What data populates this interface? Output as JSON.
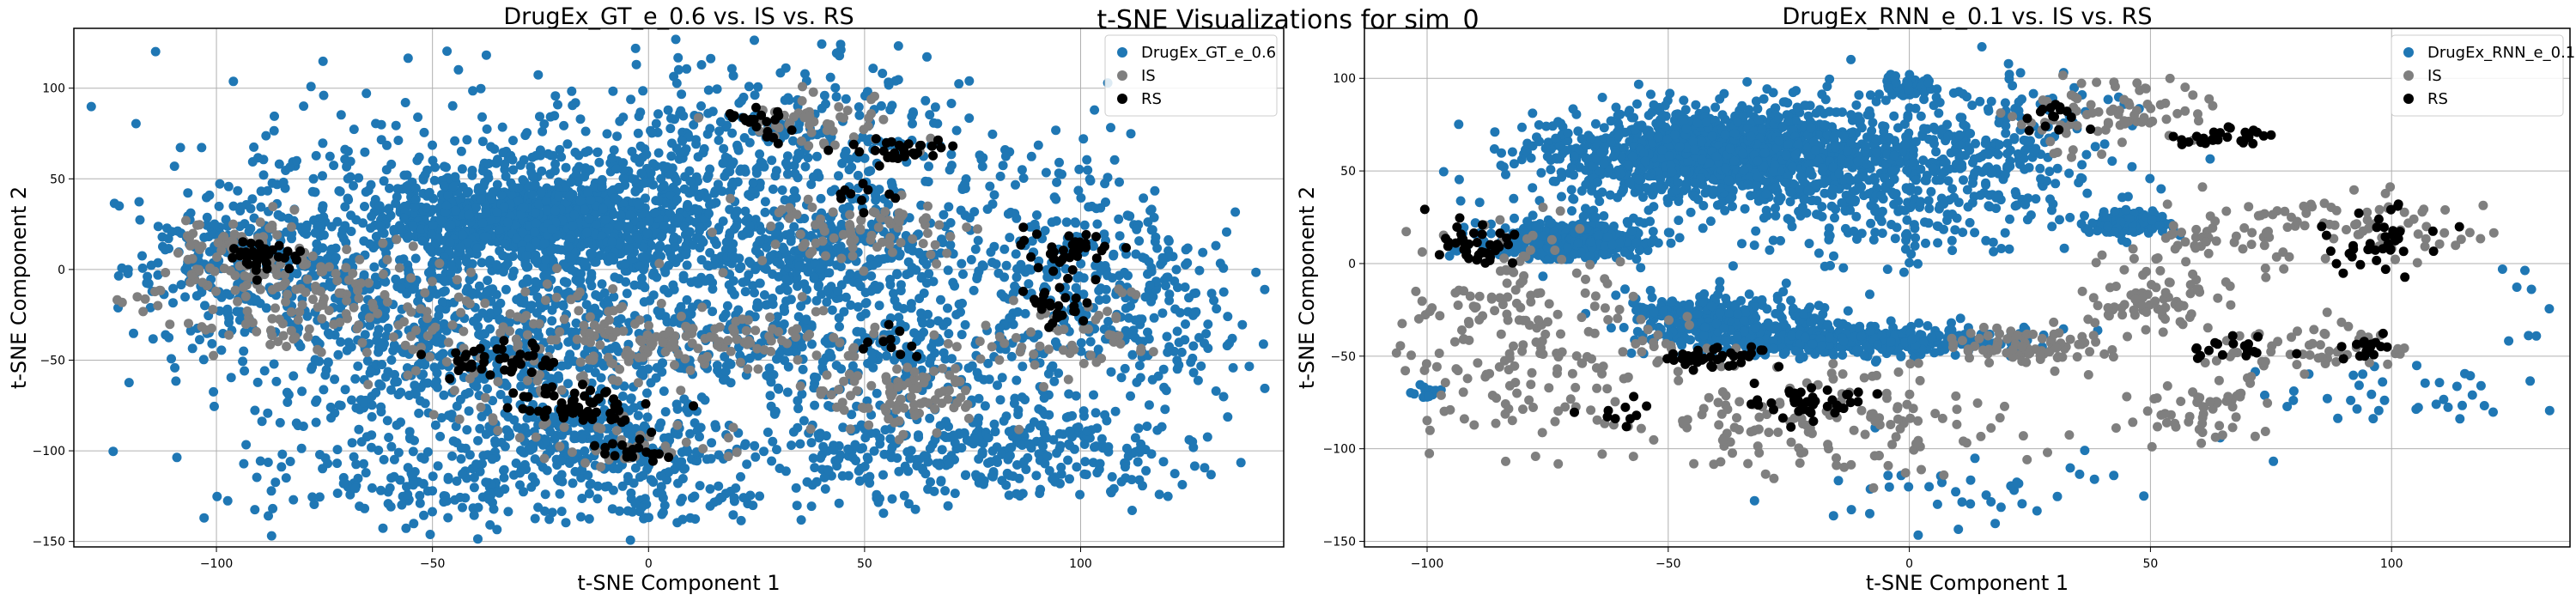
{
  "figure": {
    "suptitle": "t-SNE Visualizations for sim_0"
  },
  "chart_data": [
    {
      "type": "scatter",
      "title": "DrugEx_GT_e_0.6 vs. IS vs. RS",
      "xlabel": "t-SNE Component 1",
      "ylabel": "t-SNE Component 2",
      "xlim": [
        -133,
        147
      ],
      "ylim": [
        -153,
        133
      ],
      "xticks": [
        -100,
        -50,
        0,
        50,
        100
      ],
      "yticks": [
        -150,
        -100,
        -50,
        0,
        50,
        100
      ],
      "grid": true,
      "legend": "top-right",
      "series": [
        {
          "name": "DrugEx_GT_e_0.6",
          "color": "#1f77b4",
          "clusters": [
            {
              "cx": -25,
              "cy": 28,
              "sx": 18,
              "sy": 11,
              "n": 900
            },
            {
              "cx": -5,
              "cy": 20,
              "sx": 30,
              "sy": 30,
              "n": 700
            },
            {
              "cx": -70,
              "cy": 10,
              "sx": 25,
              "sy": 45,
              "n": 400
            },
            {
              "cx": -95,
              "cy": 5,
              "sx": 12,
              "sy": 20,
              "n": 150
            },
            {
              "cx": 30,
              "cy": 65,
              "sx": 30,
              "sy": 30,
              "n": 350
            },
            {
              "cx": 45,
              "cy": 5,
              "sx": 18,
              "sy": 14,
              "n": 250
            },
            {
              "cx": 95,
              "cy": 0,
              "sx": 14,
              "sy": 35,
              "n": 250
            },
            {
              "cx": 120,
              "cy": -25,
              "sx": 10,
              "sy": 30,
              "n": 150
            },
            {
              "cx": 85,
              "cy": -100,
              "sx": 25,
              "sy": 12,
              "n": 250
            },
            {
              "cx": 60,
              "cy": -55,
              "sx": 15,
              "sy": 25,
              "n": 180
            },
            {
              "cx": 30,
              "cy": -45,
              "sx": 20,
              "sy": 10,
              "n": 140
            },
            {
              "cx": -25,
              "cy": -50,
              "sx": 20,
              "sy": 25,
              "n": 300
            },
            {
              "cx": -15,
              "cy": -95,
              "sx": 18,
              "sy": 10,
              "n": 200
            },
            {
              "cx": -50,
              "cy": -120,
              "sx": 20,
              "sy": 12,
              "n": 150
            },
            {
              "cx": 0,
              "cy": -125,
              "sx": 15,
              "sy": 12,
              "n": 80
            },
            {
              "cx": 35,
              "cy": -110,
              "sx": 25,
              "sy": 15,
              "n": 100
            },
            {
              "cx": -60,
              "cy": -40,
              "sx": 25,
              "sy": 30,
              "n": 250
            }
          ]
        },
        {
          "name": "IS",
          "color": "#7f7f7f",
          "clusters": [
            {
              "cx": -80,
              "cy": -15,
              "sx": 18,
              "sy": 15,
              "n": 140
            },
            {
              "cx": -20,
              "cy": -40,
              "sx": 25,
              "sy": 20,
              "n": 120
            },
            {
              "cx": 10,
              "cy": -40,
              "sx": 25,
              "sy": 8,
              "n": 120
            },
            {
              "cx": 50,
              "cy": 20,
              "sx": 12,
              "sy": 10,
              "n": 80
            },
            {
              "cx": 60,
              "cy": -70,
              "sx": 10,
              "sy": 10,
              "n": 90
            },
            {
              "cx": 95,
              "cy": -35,
              "sx": 10,
              "sy": 12,
              "n": 50
            },
            {
              "cx": 40,
              "cy": 80,
              "sx": 10,
              "sy": 8,
              "n": 50
            },
            {
              "cx": -95,
              "cy": 10,
              "sx": 8,
              "sy": 8,
              "n": 60
            },
            {
              "cx": -5,
              "cy": -95,
              "sx": 12,
              "sy": 8,
              "n": 40
            }
          ]
        },
        {
          "name": "RS",
          "color": "#000000",
          "clusters": [
            {
              "cx": -90,
              "cy": 8,
              "sx": 4,
              "sy": 4,
              "n": 40
            },
            {
              "cx": -15,
              "cy": -75,
              "sx": 7,
              "sy": 6,
              "n": 60
            },
            {
              "cx": -35,
              "cy": -50,
              "sx": 8,
              "sy": 4,
              "n": 40
            },
            {
              "cx": 60,
              "cy": 65,
              "sx": 6,
              "sy": 3,
              "n": 30
            },
            {
              "cx": 97,
              "cy": 10,
              "sx": 6,
              "sy": 6,
              "n": 35
            },
            {
              "cx": 95,
              "cy": -20,
              "sx": 4,
              "sy": 6,
              "n": 25
            },
            {
              "cx": 25,
              "cy": 82,
              "sx": 4,
              "sy": 4,
              "n": 20
            },
            {
              "cx": -5,
              "cy": -100,
              "sx": 5,
              "sy": 3,
              "n": 20
            },
            {
              "cx": 50,
              "cy": 40,
              "sx": 4,
              "sy": 4,
              "n": 10
            },
            {
              "cx": 55,
              "cy": -40,
              "sx": 4,
              "sy": 4,
              "n": 10
            }
          ]
        }
      ]
    },
    {
      "type": "scatter",
      "title": "DrugEx_RNN_e_0.1 vs. IS vs. RS",
      "xlabel": "t-SNE Component 1",
      "ylabel": "t-SNE Component 2",
      "xlim": [
        -113,
        137
      ],
      "ylim": [
        -153,
        127
      ],
      "xticks": [
        -100,
        -50,
        0,
        50,
        100
      ],
      "yticks": [
        -150,
        -100,
        -50,
        0,
        50,
        100
      ],
      "grid": true,
      "legend": "top-right",
      "series": [
        {
          "name": "DrugEx_RNN_e_0.1",
          "color": "#1f77b4",
          "clusters": [
            {
              "cx": -40,
              "cy": 60,
              "sx": 18,
              "sy": 12,
              "n": 1200
            },
            {
              "cx": -15,
              "cy": 45,
              "sx": 25,
              "sy": 20,
              "n": 500
            },
            {
              "cx": -70,
              "cy": 12,
              "sx": 8,
              "sy": 5,
              "n": 400
            },
            {
              "cx": -10,
              "cy": -42,
              "sx": 15,
              "sy": 4,
              "n": 400
            },
            {
              "cx": -40,
              "cy": -30,
              "sx": 10,
              "sy": 8,
              "n": 300
            },
            {
              "cx": 45,
              "cy": 22,
              "sx": 4,
              "sy": 3,
              "n": 150
            },
            {
              "cx": 0,
              "cy": 95,
              "sx": 3,
              "sy": 3,
              "n": 60
            },
            {
              "cx": 15,
              "cy": 60,
              "sx": 15,
              "sy": 20,
              "n": 200
            },
            {
              "cx": 100,
              "cy": -70,
              "sx": 15,
              "sy": 15,
              "n": 40
            },
            {
              "cx": 10,
              "cy": -120,
              "sx": 20,
              "sy": 12,
              "n": 40
            },
            {
              "cx": -100,
              "cy": -70,
              "sx": 2,
              "sy": 2,
              "n": 15
            },
            {
              "cx": 125,
              "cy": -25,
              "sx": 4,
              "sy": 15,
              "n": 8
            }
          ]
        },
        {
          "name": "IS",
          "color": "#7f7f7f",
          "clusters": [
            {
              "cx": -85,
              "cy": -40,
              "sx": 15,
              "sy": 30,
              "n": 180
            },
            {
              "cx": -20,
              "cy": -85,
              "sx": 20,
              "sy": 15,
              "n": 150
            },
            {
              "cx": 25,
              "cy": -45,
              "sx": 10,
              "sy": 6,
              "n": 80
            },
            {
              "cx": 50,
              "cy": -20,
              "sx": 8,
              "sy": 10,
              "n": 70
            },
            {
              "cx": 60,
              "cy": -75,
              "sx": 8,
              "sy": 10,
              "n": 60
            },
            {
              "cx": 85,
              "cy": -45,
              "sx": 10,
              "sy": 8,
              "n": 50
            },
            {
              "cx": 90,
              "cy": 20,
              "sx": 15,
              "sy": 10,
              "n": 80
            },
            {
              "cx": 40,
              "cy": 80,
              "sx": 10,
              "sy": 10,
              "n": 80
            },
            {
              "cx": 60,
              "cy": 10,
              "sx": 8,
              "sy": 10,
              "n": 40
            },
            {
              "cx": -60,
              "cy": -50,
              "sx": 10,
              "sy": 10,
              "n": 40
            }
          ]
        },
        {
          "name": "RS",
          "color": "#000000",
          "clusters": [
            {
              "cx": -90,
              "cy": 10,
              "sx": 5,
              "sy": 6,
              "n": 40
            },
            {
              "cx": -40,
              "cy": -50,
              "sx": 6,
              "sy": 3,
              "n": 40
            },
            {
              "cx": -20,
              "cy": -75,
              "sx": 6,
              "sy": 5,
              "n": 40
            },
            {
              "cx": 65,
              "cy": 68,
              "sx": 6,
              "sy": 3,
              "n": 30
            },
            {
              "cx": 100,
              "cy": 10,
              "sx": 6,
              "sy": 10,
              "n": 40
            },
            {
              "cx": 65,
              "cy": -45,
              "sx": 5,
              "sy": 5,
              "n": 20
            },
            {
              "cx": 95,
              "cy": -45,
              "sx": 4,
              "sy": 3,
              "n": 15
            },
            {
              "cx": -60,
              "cy": -80,
              "sx": 4,
              "sy": 4,
              "n": 10
            },
            {
              "cx": 30,
              "cy": 80,
              "sx": 4,
              "sy": 4,
              "n": 15
            }
          ]
        }
      ]
    }
  ]
}
